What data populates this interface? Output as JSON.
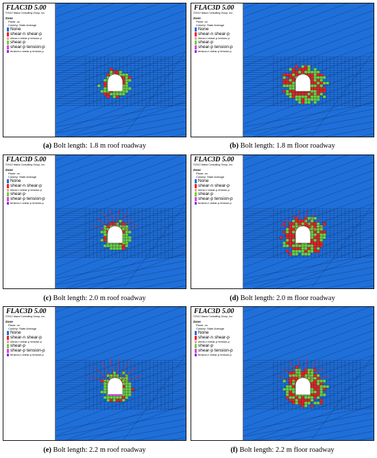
{
  "legend": {
    "title": "FLAC3D 5.00",
    "copyright": "©2012 Itasca Consulting Group, Inc.",
    "zone_heading": "Zone",
    "plane": "Plane: on",
    "colorby": "Colorby: State   Average",
    "items": [
      {
        "label": "None",
        "color": "#1f6fd9",
        "size": "big"
      },
      {
        "label": "shear-n shear-p",
        "color": "#e8231c",
        "size": "big"
      },
      {
        "label": "shear-n shear-p tension-p",
        "color": "#f0a0a0",
        "size": "small"
      },
      {
        "label": "shear-p",
        "color": "#6fd23a",
        "size": "big"
      },
      {
        "label": "shear-p tension-p",
        "color": "#e040e0",
        "size": "big"
      },
      {
        "label": "tension-n shear-p tension-p",
        "color": "#8a2be2",
        "size": "small"
      }
    ]
  },
  "panels": [
    {
      "id": "a",
      "side": "roof",
      "bolt": 1.8,
      "caption_letter": "(a)",
      "caption_text": "Bolt length: 1.8 m roof roadway"
    },
    {
      "id": "b",
      "side": "floor",
      "bolt": 1.8,
      "caption_letter": "(b)",
      "caption_text": "Bolt length: 1.8 m floor roadway"
    },
    {
      "id": "c",
      "side": "roof",
      "bolt": 2.0,
      "caption_letter": "(c)",
      "caption_text": "Bolt length: 2.0 m roof roadway"
    },
    {
      "id": "d",
      "side": "floor",
      "bolt": 2.0,
      "caption_letter": "(d)",
      "caption_text": "Bolt length: 2.0 m floor roadway"
    },
    {
      "id": "e",
      "side": "roof",
      "bolt": 2.2,
      "caption_letter": "(e)",
      "caption_text": "Bolt length: 2.2 m roof roadway"
    },
    {
      "id": "f",
      "side": "floor",
      "bolt": 2.2,
      "caption_letter": "(f)",
      "caption_text": "Bolt length: 2.2 m floor roadway"
    }
  ],
  "colors": {
    "background": "#1f6fd9",
    "mesh": "#0d2f66",
    "opening": "#ffffff",
    "shear_n": "#e8231c",
    "shear_p": "#6fd23a",
    "bolt": "#e8231c"
  }
}
